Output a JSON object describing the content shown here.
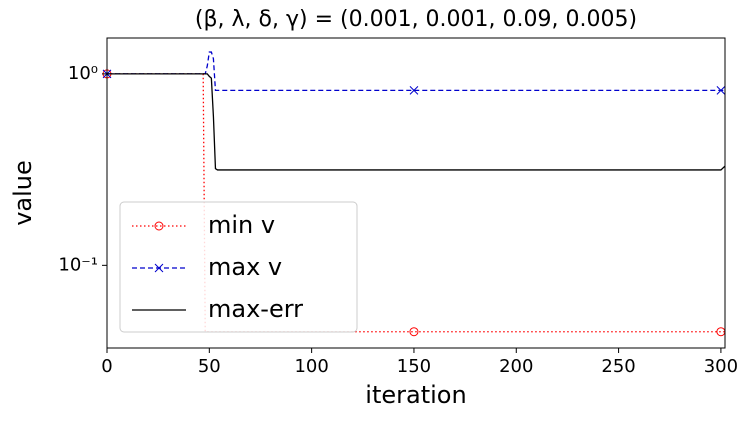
{
  "chart_data": {
    "type": "line",
    "title": "(β, λ, δ, γ) = (0.001, 0.001, 0.09, 0.005)",
    "xlabel": "iteration",
    "ylabel": "value",
    "x": [
      0,
      47,
      48,
      49,
      50,
      51,
      52,
      53,
      54,
      150,
      300,
      302
    ],
    "series": [
      {
        "name": "min v",
        "color": "#ff0000",
        "linestyle": "dotted",
        "marker": "circle",
        "values": [
          1,
          1,
          0.045,
          0.045,
          0.045,
          0.045,
          0.045,
          0.045,
          0.045,
          0.045,
          0.045,
          0.045
        ]
      },
      {
        "name": "max v",
        "color": "#0000cc",
        "linestyle": "dashed",
        "marker": "x",
        "values": [
          1,
          1,
          1,
          1.1,
          1.3,
          1.3,
          1.2,
          0.82,
          0.82,
          0.82,
          0.82,
          0.82
        ]
      },
      {
        "name": "max-err",
        "color": "#000000",
        "linestyle": "solid",
        "marker": "none",
        "values": [
          1,
          1,
          1,
          1,
          0.97,
          0.95,
          0.6,
          0.32,
          0.315,
          0.315,
          0.315,
          0.33
        ]
      }
    ],
    "markevery": 150,
    "xlim": [
      0,
      302
    ],
    "ylim": [
      0.037,
      1.54
    ],
    "yscale": "log",
    "xticks": [
      0,
      50,
      100,
      150,
      200,
      250,
      300
    ],
    "yticks": [
      {
        "value": 1,
        "label": "10⁰"
      },
      {
        "value": 0.1,
        "label": "10⁻¹"
      }
    ],
    "legend": "lower left"
  }
}
